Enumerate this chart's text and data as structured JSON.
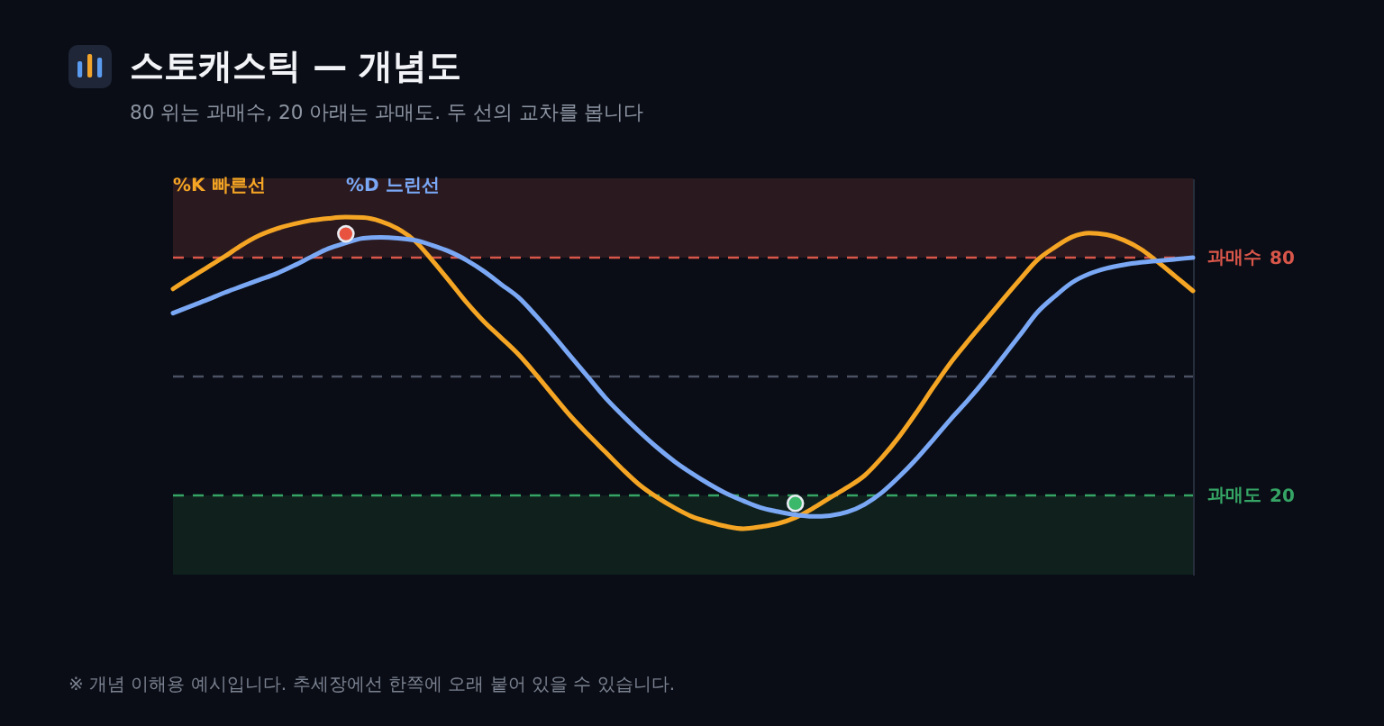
{
  "chart_data": {
    "type": "line",
    "title": "스토캐스틱 — 개념도",
    "subtitle": "80 위는 과매수, 20 아래는 과매도. 두 선의 교차를 봅니다",
    "categories": [
      null,
      null,
      null,
      null,
      null,
      null,
      null,
      null,
      null,
      null,
      null,
      null,
      null,
      null,
      null,
      null,
      null,
      null,
      null,
      null,
      null,
      null,
      null,
      null,
      null,
      null,
      null,
      null,
      null,
      null,
      null,
      null,
      null,
      null,
      null,
      null,
      null,
      null,
      null,
      null,
      null,
      null,
      null,
      null,
      null,
      null,
      null,
      null,
      null,
      null,
      null,
      null,
      null,
      null,
      null,
      null,
      null,
      null,
      null,
      null
    ],
    "series": [
      {
        "name": "%K 빠른선",
        "color": "#f5a524",
        "values": [
          72.1,
          74.9,
          77.6,
          80.3,
          83.2,
          85.6,
          87.3,
          88.5,
          89.4,
          89.9,
          90.2,
          90.1,
          89.2,
          87.3,
          84.2,
          79.3,
          74.0,
          68.6,
          63.8,
          59.7,
          55.5,
          50.5,
          45.2,
          40.0,
          35.4,
          31.0,
          26.6,
          22.6,
          19.5,
          16.9,
          14.7,
          13.3,
          12.2,
          11.6,
          12.1,
          12.9,
          14.4,
          16.7,
          19.4,
          22.0,
          25.0,
          29.5,
          34.8,
          40.9,
          47.4,
          53.6,
          59.0,
          64.2,
          69.4,
          74.5,
          79.4,
          82.6,
          85.2,
          86.2,
          85.8,
          84.4,
          82.1,
          78.8,
          75.2,
          71.6
        ]
      },
      {
        "name": "%D 느린선",
        "color": "#7aa8f5",
        "values": [
          66.0,
          67.7,
          69.4,
          71.2,
          72.8,
          74.4,
          76.0,
          78.0,
          80.2,
          82.3,
          83.7,
          84.9,
          85.1,
          84.9,
          84.4,
          83.1,
          81.5,
          79.3,
          76.5,
          73.2,
          69.9,
          65.3,
          60.3,
          55.1,
          49.9,
          44.7,
          40.2,
          36.0,
          32.1,
          28.6,
          25.6,
          22.9,
          20.5,
          18.6,
          16.9,
          15.9,
          15.1,
          14.7,
          14.9,
          15.8,
          17.7,
          20.7,
          24.7,
          29.2,
          34.2,
          39.3,
          44.1,
          49.3,
          54.9,
          60.5,
          66.2,
          70.2,
          73.7,
          75.9,
          77.3,
          78.2,
          78.8,
          79.2,
          79.6,
          80.0
        ]
      },
      {
        "type": "scatter",
        "marker": "circle",
        "color": "#e8533f",
        "values": [
          null,
          null,
          null,
          null,
          null,
          null,
          null,
          null,
          null,
          null,
          86,
          null,
          null,
          null,
          null,
          null,
          null,
          null,
          null,
          null,
          null,
          null,
          null,
          null,
          null,
          null,
          null,
          null,
          null,
          null,
          null,
          null,
          null,
          null,
          null,
          null,
          null,
          null,
          null,
          null,
          null,
          null,
          null,
          null,
          null,
          null,
          null,
          null,
          null,
          null,
          null,
          null,
          null,
          null,
          null,
          null,
          null,
          null,
          null,
          null
        ]
      },
      {
        "type": "scatter",
        "marker": "circle",
        "color": "#3cb86a",
        "values": [
          null,
          null,
          null,
          null,
          null,
          null,
          null,
          null,
          null,
          null,
          null,
          null,
          null,
          null,
          null,
          null,
          null,
          null,
          null,
          null,
          null,
          null,
          null,
          null,
          null,
          null,
          null,
          null,
          null,
          null,
          null,
          null,
          null,
          null,
          null,
          null,
          18,
          null,
          null,
          null,
          null,
          null,
          null,
          null,
          null,
          null,
          null,
          null,
          null,
          null,
          null,
          null,
          null,
          null,
          null,
          null,
          null,
          null,
          null,
          null
        ]
      }
    ],
    "ylim": [
      0,
      100
    ],
    "yticks": [
      20,
      80
    ],
    "tick_labels": "y",
    "ref_lines": [
      {
        "axis": "y",
        "value": 80,
        "label": "과매수",
        "color": "#d9564a",
        "line_style": "dashed"
      },
      {
        "axis": "y",
        "value": 50,
        "color": "#4b5263",
        "line_style": "dashed"
      },
      {
        "axis": "y",
        "value": 20,
        "label": "과매도",
        "color": "#35a465",
        "line_style": "dashed"
      }
    ],
    "bands": [
      {
        "axis": "y",
        "from": 80,
        "to": 100,
        "color": "#2a1a20"
      },
      {
        "axis": "y",
        "from": 0,
        "to": 20,
        "color": "#0f201d"
      }
    ],
    "annotations": [
      "※ 개념 이해용 예시입니다. 추세장에선 한쪽에 오래 붙어 있을 수 있습니다."
    ]
  }
}
